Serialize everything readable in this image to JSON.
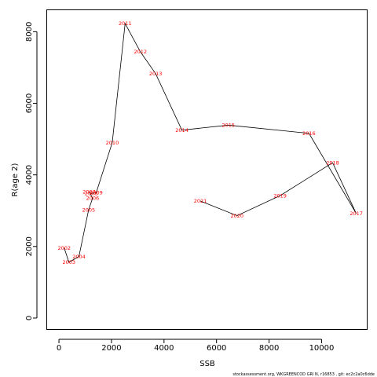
{
  "chart_data": {
    "type": "line",
    "xlabel": "SSB",
    "ylabel": "R(age 2)",
    "xlim": [
      -450,
      11750
    ],
    "ylim": [
      -330,
      8600
    ],
    "x_ticks": [
      0,
      2000,
      4000,
      6000,
      8000,
      10000
    ],
    "y_ticks": [
      0,
      2000,
      4000,
      6000,
      8000
    ],
    "grid": false,
    "point_label_color": "#ff0000",
    "line_color": "#000000",
    "points": [
      {
        "year": "2002",
        "x": 200,
        "y": 1960
      },
      {
        "year": "2003",
        "x": 380,
        "y": 1560
      },
      {
        "year": "2004",
        "x": 760,
        "y": 1720
      },
      {
        "year": "2005",
        "x": 1130,
        "y": 3020
      },
      {
        "year": "2006",
        "x": 1280,
        "y": 3350
      },
      {
        "year": "2007",
        "x": 1150,
        "y": 3530
      },
      {
        "year": "2008",
        "x": 1230,
        "y": 3480
      },
      {
        "year": "2009",
        "x": 1420,
        "y": 3500
      },
      {
        "year": "2010",
        "x": 2030,
        "y": 4900
      },
      {
        "year": "2011",
        "x": 2520,
        "y": 8230
      },
      {
        "year": "2012",
        "x": 3100,
        "y": 7440
      },
      {
        "year": "2013",
        "x": 3680,
        "y": 6830
      },
      {
        "year": "2014",
        "x": 4680,
        "y": 5250
      },
      {
        "year": "2015",
        "x": 6450,
        "y": 5390
      },
      {
        "year": "2016",
        "x": 9520,
        "y": 5160
      },
      {
        "year": "2017",
        "x": 11320,
        "y": 2920
      },
      {
        "year": "2018",
        "x": 10420,
        "y": 4340
      },
      {
        "year": "2019",
        "x": 8420,
        "y": 3420
      },
      {
        "year": "2020",
        "x": 6780,
        "y": 2860
      },
      {
        "year": "2021",
        "x": 5380,
        "y": 3270
      }
    ]
  },
  "footer": "stockassessment.org,  WKGREENCOD  GRI N,  r16853 ,  git: ec2c2a0c6dde"
}
